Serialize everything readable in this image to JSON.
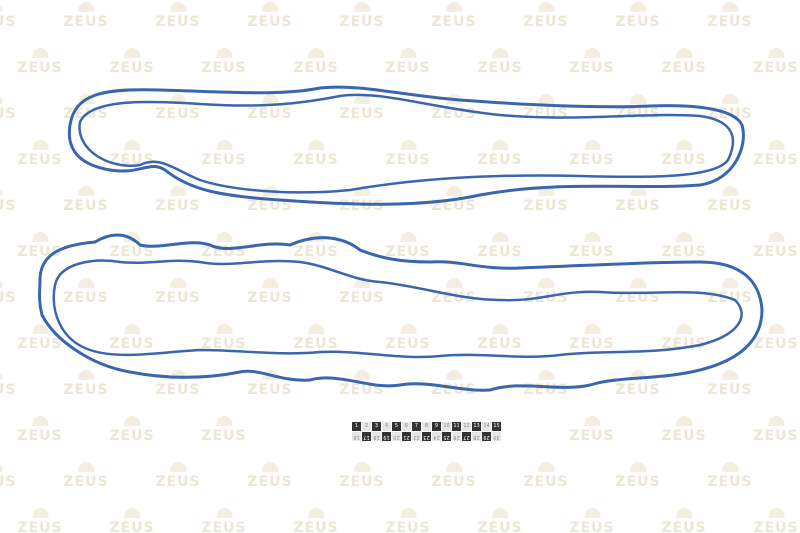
{
  "watermark": {
    "text": "ZEUS",
    "color": "#ece6d4"
  },
  "gasket_color": "#3a66b0",
  "ruler": {
    "top": [
      "1",
      "2",
      "3",
      "4",
      "5",
      "6",
      "7",
      "8",
      "9",
      "10",
      "11",
      "12",
      "13",
      "14",
      "15"
    ],
    "bottom": [
      "16",
      "17",
      "18",
      "19",
      "20",
      "21",
      "22",
      "23",
      "24",
      "25",
      "26",
      "27",
      "28",
      "29",
      "30"
    ]
  }
}
